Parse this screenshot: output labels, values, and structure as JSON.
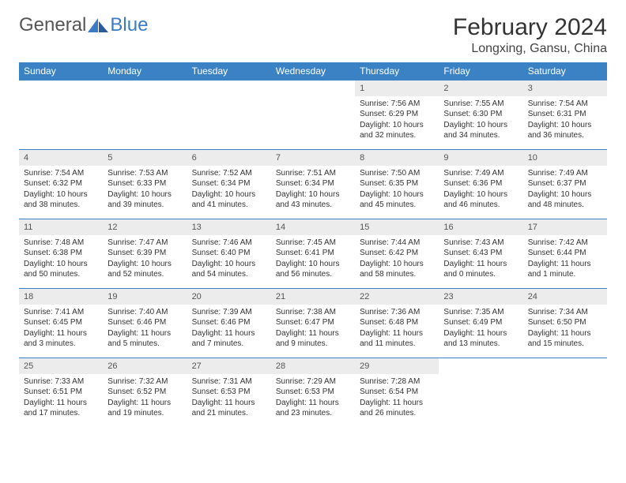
{
  "logo": {
    "text1": "General",
    "text2": "Blue"
  },
  "title": "February 2024",
  "location": "Longxing, Gansu, China",
  "colors": {
    "header_bg": "#3b82c4",
    "header_text": "#ffffff",
    "daynum_bg": "#ececec",
    "daynum_text": "#555555",
    "border": "#3b82c4",
    "body_text": "#333333",
    "logo_blue": "#3b7bc4",
    "logo_gray": "#555555"
  },
  "weekdays": [
    "Sunday",
    "Monday",
    "Tuesday",
    "Wednesday",
    "Thursday",
    "Friday",
    "Saturday"
  ],
  "weeks": [
    [
      null,
      null,
      null,
      null,
      {
        "n": "1",
        "sunrise": "Sunrise: 7:56 AM",
        "sunset": "Sunset: 6:29 PM",
        "daylight": "Daylight: 10 hours and 32 minutes."
      },
      {
        "n": "2",
        "sunrise": "Sunrise: 7:55 AM",
        "sunset": "Sunset: 6:30 PM",
        "daylight": "Daylight: 10 hours and 34 minutes."
      },
      {
        "n": "3",
        "sunrise": "Sunrise: 7:54 AM",
        "sunset": "Sunset: 6:31 PM",
        "daylight": "Daylight: 10 hours and 36 minutes."
      }
    ],
    [
      {
        "n": "4",
        "sunrise": "Sunrise: 7:54 AM",
        "sunset": "Sunset: 6:32 PM",
        "daylight": "Daylight: 10 hours and 38 minutes."
      },
      {
        "n": "5",
        "sunrise": "Sunrise: 7:53 AM",
        "sunset": "Sunset: 6:33 PM",
        "daylight": "Daylight: 10 hours and 39 minutes."
      },
      {
        "n": "6",
        "sunrise": "Sunrise: 7:52 AM",
        "sunset": "Sunset: 6:34 PM",
        "daylight": "Daylight: 10 hours and 41 minutes."
      },
      {
        "n": "7",
        "sunrise": "Sunrise: 7:51 AM",
        "sunset": "Sunset: 6:34 PM",
        "daylight": "Daylight: 10 hours and 43 minutes."
      },
      {
        "n": "8",
        "sunrise": "Sunrise: 7:50 AM",
        "sunset": "Sunset: 6:35 PM",
        "daylight": "Daylight: 10 hours and 45 minutes."
      },
      {
        "n": "9",
        "sunrise": "Sunrise: 7:49 AM",
        "sunset": "Sunset: 6:36 PM",
        "daylight": "Daylight: 10 hours and 46 minutes."
      },
      {
        "n": "10",
        "sunrise": "Sunrise: 7:49 AM",
        "sunset": "Sunset: 6:37 PM",
        "daylight": "Daylight: 10 hours and 48 minutes."
      }
    ],
    [
      {
        "n": "11",
        "sunrise": "Sunrise: 7:48 AM",
        "sunset": "Sunset: 6:38 PM",
        "daylight": "Daylight: 10 hours and 50 minutes."
      },
      {
        "n": "12",
        "sunrise": "Sunrise: 7:47 AM",
        "sunset": "Sunset: 6:39 PM",
        "daylight": "Daylight: 10 hours and 52 minutes."
      },
      {
        "n": "13",
        "sunrise": "Sunrise: 7:46 AM",
        "sunset": "Sunset: 6:40 PM",
        "daylight": "Daylight: 10 hours and 54 minutes."
      },
      {
        "n": "14",
        "sunrise": "Sunrise: 7:45 AM",
        "sunset": "Sunset: 6:41 PM",
        "daylight": "Daylight: 10 hours and 56 minutes."
      },
      {
        "n": "15",
        "sunrise": "Sunrise: 7:44 AM",
        "sunset": "Sunset: 6:42 PM",
        "daylight": "Daylight: 10 hours and 58 minutes."
      },
      {
        "n": "16",
        "sunrise": "Sunrise: 7:43 AM",
        "sunset": "Sunset: 6:43 PM",
        "daylight": "Daylight: 11 hours and 0 minutes."
      },
      {
        "n": "17",
        "sunrise": "Sunrise: 7:42 AM",
        "sunset": "Sunset: 6:44 PM",
        "daylight": "Daylight: 11 hours and 1 minute."
      }
    ],
    [
      {
        "n": "18",
        "sunrise": "Sunrise: 7:41 AM",
        "sunset": "Sunset: 6:45 PM",
        "daylight": "Daylight: 11 hours and 3 minutes."
      },
      {
        "n": "19",
        "sunrise": "Sunrise: 7:40 AM",
        "sunset": "Sunset: 6:46 PM",
        "daylight": "Daylight: 11 hours and 5 minutes."
      },
      {
        "n": "20",
        "sunrise": "Sunrise: 7:39 AM",
        "sunset": "Sunset: 6:46 PM",
        "daylight": "Daylight: 11 hours and 7 minutes."
      },
      {
        "n": "21",
        "sunrise": "Sunrise: 7:38 AM",
        "sunset": "Sunset: 6:47 PM",
        "daylight": "Daylight: 11 hours and 9 minutes."
      },
      {
        "n": "22",
        "sunrise": "Sunrise: 7:36 AM",
        "sunset": "Sunset: 6:48 PM",
        "daylight": "Daylight: 11 hours and 11 minutes."
      },
      {
        "n": "23",
        "sunrise": "Sunrise: 7:35 AM",
        "sunset": "Sunset: 6:49 PM",
        "daylight": "Daylight: 11 hours and 13 minutes."
      },
      {
        "n": "24",
        "sunrise": "Sunrise: 7:34 AM",
        "sunset": "Sunset: 6:50 PM",
        "daylight": "Daylight: 11 hours and 15 minutes."
      }
    ],
    [
      {
        "n": "25",
        "sunrise": "Sunrise: 7:33 AM",
        "sunset": "Sunset: 6:51 PM",
        "daylight": "Daylight: 11 hours and 17 minutes."
      },
      {
        "n": "26",
        "sunrise": "Sunrise: 7:32 AM",
        "sunset": "Sunset: 6:52 PM",
        "daylight": "Daylight: 11 hours and 19 minutes."
      },
      {
        "n": "27",
        "sunrise": "Sunrise: 7:31 AM",
        "sunset": "Sunset: 6:53 PM",
        "daylight": "Daylight: 11 hours and 21 minutes."
      },
      {
        "n": "28",
        "sunrise": "Sunrise: 7:29 AM",
        "sunset": "Sunset: 6:53 PM",
        "daylight": "Daylight: 11 hours and 23 minutes."
      },
      {
        "n": "29",
        "sunrise": "Sunrise: 7:28 AM",
        "sunset": "Sunset: 6:54 PM",
        "daylight": "Daylight: 11 hours and 26 minutes."
      },
      null,
      null
    ]
  ]
}
